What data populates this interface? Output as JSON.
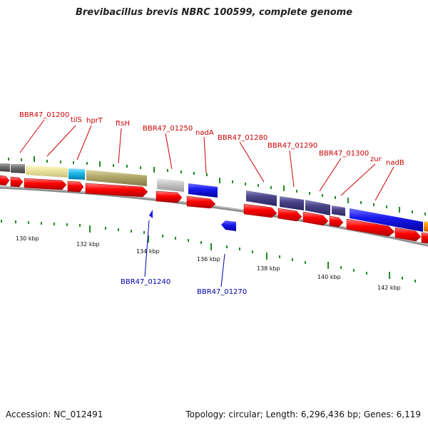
{
  "title": "Brevibacillus brevis NBRC 100599, complete genome",
  "footer": {
    "accession": "Accession: NC_012491",
    "summary": "Topology: circular; Length: 6,296,436 bp; Genes: 6,119"
  },
  "kbp_ticks": [
    "130 kbp",
    "132 kbp",
    "134 kbp",
    "136 kbp",
    "138 kbp",
    "140 kbp",
    "142 kbp"
  ],
  "forward_labels": [
    "BBR47_01200",
    "tilS",
    "hprT",
    "ftsH",
    "BBR47_01250",
    "nadA",
    "BBR47_01280",
    "BBR47_01290",
    "BBR47_01300",
    "zur",
    "nadB"
  ],
  "reverse_labels": [
    "BBR47_01240",
    "BBR47_01270"
  ],
  "colors": {
    "forward_label": "#cc0000",
    "reverse_label": "#0000aa",
    "cds": "#ff0000",
    "reverse_gene": "#0000ee",
    "tick": "#228b22",
    "backbone": "#8c8c8c",
    "gray_gene": "#707070",
    "yellow_gene": "#ede6a0",
    "cyan_gene": "#22bbee",
    "olive_gene": "#b4aa6a",
    "lightgray_gene": "#c8c8c8",
    "blue_gene": "#1a1aee",
    "purple_gene": "#4a4488",
    "orange_gene": "#ff9900"
  }
}
